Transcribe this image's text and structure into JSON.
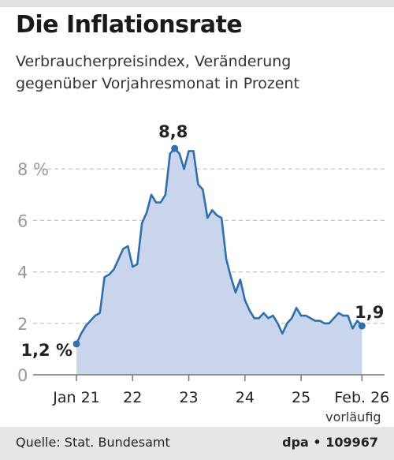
{
  "title": "Die Inflationsrate",
  "subtitle_line1": "Verbraucherpreisindex, Veränderung",
  "subtitle_line2": "gegenüber Vorjahresmonat in Prozent",
  "source": "Quelle: Stat. Bundesamt",
  "credit": "dpa • 109967",
  "colors": {
    "line": "#2f6fad",
    "fill": "#c9d5ec",
    "grid": "#c4c4c4",
    "axis": "#777777",
    "text": "#222222"
  },
  "chart_data": {
    "type": "area",
    "ylim": [
      0,
      9.5
    ],
    "yticks": [
      0,
      2,
      4,
      6,
      8
    ],
    "ytick_labels": [
      "0",
      "2",
      "4",
      "6",
      "8 %"
    ],
    "xticks": [
      {
        "month": 0,
        "label": "Jan 21"
      },
      {
        "month": 12,
        "label": "22"
      },
      {
        "month": 24,
        "label": "23"
      },
      {
        "month": 36,
        "label": "24"
      },
      {
        "month": 48,
        "label": "25"
      },
      {
        "month": 61,
        "label": "Feb. 26"
      }
    ],
    "xtick_note": "vorläufig",
    "annotations": [
      {
        "month": 0,
        "value": 1.2,
        "label": "1,2 %"
      },
      {
        "month": 21,
        "value": 8.8,
        "label": "8,8"
      },
      {
        "month": 61,
        "value": 1.9,
        "label": "1,9"
      }
    ],
    "grid": true,
    "series": [
      {
        "values": [
          1.2,
          1.6,
          1.9,
          2.1,
          2.3,
          2.4,
          3.8,
          3.9,
          4.1,
          4.5,
          4.9,
          5.0,
          4.2,
          4.3,
          5.9,
          6.3,
          7.0,
          6.7,
          6.7,
          7.0,
          8.6,
          8.8,
          8.6,
          8.0,
          8.7,
          8.7,
          7.4,
          7.2,
          6.1,
          6.4,
          6.2,
          6.1,
          4.5,
          3.8,
          3.2,
          3.7,
          2.9,
          2.5,
          2.2,
          2.2,
          2.4,
          2.2,
          2.3,
          2.0,
          1.6,
          2.0,
          2.2,
          2.6,
          2.3,
          2.3,
          2.2,
          2.1,
          2.1,
          2.0,
          2.0,
          2.2,
          2.4,
          2.3,
          2.3,
          1.8,
          2.1,
          1.9
        ]
      }
    ]
  }
}
